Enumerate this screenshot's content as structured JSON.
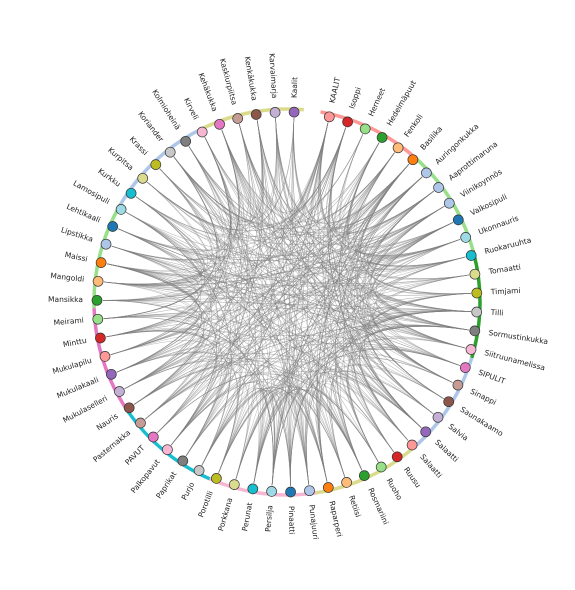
{
  "nodes": [
    {
      "label": "KAALIT",
      "color": "#ff9896"
    },
    {
      "label": "Isoppi",
      "color": "#d62728"
    },
    {
      "label": "Herneet",
      "color": "#98df8a"
    },
    {
      "label": "Hedelmäpuut",
      "color": "#2ca02c"
    },
    {
      "label": "Fenkoli",
      "color": "#ffbb78"
    },
    {
      "label": "Basilika",
      "color": "#ff7f0e"
    },
    {
      "label": "Auringonkukka",
      "color": "#aec7e8"
    },
    {
      "label": "Aaprottimaruna",
      "color": "#aec7e8"
    },
    {
      "label": "Viinikoynnös",
      "color": "#aec7e8"
    },
    {
      "label": "Valkosipuli",
      "color": "#1f77b4"
    },
    {
      "label": "Ukonnauris",
      "color": "#9edae5"
    },
    {
      "label": "Ruokaruuhta",
      "color": "#17becf"
    },
    {
      "label": "Tomaatti",
      "color": "#dbdb8d"
    },
    {
      "label": "Timjami",
      "color": "#bcbd22"
    },
    {
      "label": "Tilli",
      "color": "#c7c7c7"
    },
    {
      "label": "Sormustinkukka",
      "color": "#7f7f7f"
    },
    {
      "label": "Siitruunamelissa",
      "color": "#f7b6d2"
    },
    {
      "label": "SIPULIT",
      "color": "#e377c2"
    },
    {
      "label": "Sinappi",
      "color": "#c49c94"
    },
    {
      "label": "Saunakaamo",
      "color": "#8c564b"
    },
    {
      "label": "Salvia",
      "color": "#c5b0d5"
    },
    {
      "label": "Salaatti",
      "color": "#9467bd"
    },
    {
      "label": "Salaatti",
      "color": "#ff9896"
    },
    {
      "label": "Ruusu",
      "color": "#d62728"
    },
    {
      "label": "Ruoho",
      "color": "#98df8a"
    },
    {
      "label": "Rosmariini",
      "color": "#2ca02c"
    },
    {
      "label": "Retiisi",
      "color": "#ffbb78"
    },
    {
      "label": "Raparperi",
      "color": "#ff7f0e"
    },
    {
      "label": "Punajuuri",
      "color": "#aec7e8"
    },
    {
      "label": "Pinaatti",
      "color": "#1f77b4"
    },
    {
      "label": "Persilja",
      "color": "#9edae5"
    },
    {
      "label": "Perunat",
      "color": "#17becf"
    },
    {
      "label": "Porkkana",
      "color": "#dbdb8d"
    },
    {
      "label": "Porotilli",
      "color": "#bcbd22"
    },
    {
      "label": "Purjo",
      "color": "#c7c7c7"
    },
    {
      "label": "Paprikat",
      "color": "#7f7f7f"
    },
    {
      "label": "Palkopavut",
      "color": "#f7b6d2"
    },
    {
      "label": "PAVUT",
      "color": "#e377c2"
    },
    {
      "label": "Pasternakka",
      "color": "#c49c94"
    },
    {
      "label": "Nauris",
      "color": "#8c564b"
    },
    {
      "label": "Mukulaselleri",
      "color": "#c5b0d5"
    },
    {
      "label": "Mukulakaali",
      "color": "#9467bd"
    },
    {
      "label": "Mukulapilu",
      "color": "#ff9896"
    },
    {
      "label": "Minttu",
      "color": "#d62728"
    },
    {
      "label": "Meirami",
      "color": "#98df8a"
    },
    {
      "label": "Mansikka",
      "color": "#2ca02c"
    },
    {
      "label": "Mangoldi",
      "color": "#ffbb78"
    },
    {
      "label": "Maissi",
      "color": "#ff7f0e"
    },
    {
      "label": "Lipstikka",
      "color": "#aec7e8"
    },
    {
      "label": "Lehtikaali",
      "color": "#1f77b4"
    },
    {
      "label": "Lamosipuli",
      "color": "#9edae5"
    },
    {
      "label": "Kurkku",
      "color": "#17becf"
    },
    {
      "label": "Kurpitsa",
      "color": "#dbdb8d"
    },
    {
      "label": "Krassi",
      "color": "#bcbd22"
    },
    {
      "label": "Koriander",
      "color": "#c7c7c7"
    },
    {
      "label": "Kolmioheinä",
      "color": "#7f7f7f"
    },
    {
      "label": "Kirveli",
      "color": "#f7b6d2"
    },
    {
      "label": "Kehäkukka",
      "color": "#e377c2"
    },
    {
      "label": "Kaskiurpiitsa",
      "color": "#c49c94"
    },
    {
      "label": "Kenkäkukka",
      "color": "#8c564b"
    },
    {
      "label": "Karvaimarja",
      "color": "#c5b0d5"
    },
    {
      "label": "Kaalit",
      "color": "#9467bd"
    }
  ],
  "groups": [
    {
      "color": "#ff9896"
    },
    {
      "color": "#98df8a"
    },
    {
      "color": "#2ca02c"
    },
    {
      "color": "#aec7e8"
    },
    {
      "color": "#dbdb8d"
    },
    {
      "color": "#f7b6d2"
    },
    {
      "color": "#17becf"
    },
    {
      "color": "#e377c2"
    },
    {
      "color": "#98df8a"
    },
    {
      "color": "#aec7e8"
    },
    {
      "color": "#dbdb8d"
    }
  ]
}
